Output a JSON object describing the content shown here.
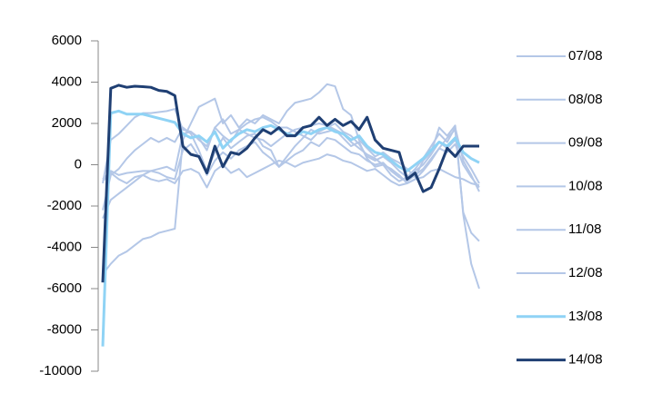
{
  "chart_data": {
    "type": "line",
    "categories": [
      null,
      null,
      null,
      null,
      null,
      null,
      null,
      null,
      null,
      null,
      null,
      null,
      null,
      null,
      null,
      null,
      null,
      null,
      null,
      null,
      null,
      null,
      null,
      null,
      null,
      null,
      null,
      null,
      null,
      null,
      null,
      null,
      null,
      null,
      null,
      null,
      null,
      null,
      null,
      null,
      null,
      null,
      null,
      null,
      null,
      null,
      null,
      null
    ],
    "ylim": [
      -10000,
      6000
    ],
    "yticks": [
      -10000,
      -8000,
      -6000,
      -4000,
      -2000,
      0,
      2000,
      4000,
      6000
    ],
    "grid": false,
    "legend": "right",
    "series": [
      {
        "name": "07/08",
        "color": "#b4c7e7",
        "values": [
          -5300,
          -4800,
          -4400,
          -4200,
          -3900,
          -3600,
          -3500,
          -3300,
          -3200,
          -3100,
          1200,
          2000,
          2800,
          3000,
          3200,
          2000,
          2400,
          1800,
          2200,
          2000,
          2400,
          2200,
          2000,
          2600,
          3000,
          3100,
          3200,
          3500,
          3900,
          3800,
          2700,
          2400,
          1200,
          800,
          400,
          600,
          300,
          100,
          -200,
          -600,
          200,
          600,
          1800,
          1400,
          1900,
          -2400,
          -4800,
          -6000
        ]
      },
      {
        "name": "08/08",
        "color": "#b4c7e7",
        "values": [
          -2600,
          -1700,
          -1400,
          -1100,
          -800,
          -500,
          -300,
          -200,
          -100,
          -300,
          1500,
          1600,
          1200,
          900,
          1800,
          1400,
          1100,
          1700,
          1500,
          1300,
          1200,
          900,
          1200,
          1500,
          1700,
          1800,
          1900,
          2000,
          1900,
          1700,
          1500,
          1100,
          800,
          500,
          300,
          0,
          -200,
          -500,
          -900,
          -700,
          -300,
          200,
          800,
          1300,
          1700,
          -2300,
          -3300,
          -3700
        ]
      },
      {
        "name": "09/08",
        "color": "#b4c7e7",
        "values": [
          -900,
          1200,
          1500,
          1900,
          2300,
          2500,
          2500,
          2550,
          2600,
          2700,
          1700,
          1600,
          1300,
          700,
          1800,
          2200,
          1500,
          1700,
          2000,
          2200,
          2300,
          2100,
          1800,
          1800,
          1600,
          1400,
          1200,
          1600,
          1800,
          2000,
          1600,
          1400,
          1000,
          400,
          200,
          400,
          100,
          -300,
          -600,
          -200,
          300,
          900,
          1500,
          1100,
          1800,
          200,
          -500,
          -1300
        ]
      },
      {
        "name": "10/08",
        "color": "#b4c7e7",
        "values": [
          -2200,
          -500,
          -200,
          300,
          700,
          1000,
          1300,
          1100,
          1300,
          1100,
          1800,
          1500,
          700,
          -300,
          600,
          1300,
          800,
          1100,
          1400,
          1500,
          900,
          700,
          -100,
          400,
          900,
          1300,
          1700,
          1500,
          1600,
          1700,
          1300,
          900,
          1100,
          300,
          -100,
          0,
          -500,
          -800,
          -600,
          -300,
          0,
          500,
          1100,
          800,
          1200,
          400,
          -200,
          -900
        ]
      },
      {
        "name": "11/08",
        "color": "#b4c7e7",
        "values": [
          -700,
          -300,
          -500,
          -400,
          -350,
          -300,
          -300,
          -400,
          -600,
          -700,
          700,
          1000,
          400,
          -500,
          200,
          600,
          300,
          700,
          900,
          1100,
          600,
          300,
          -100,
          200,
          500,
          700,
          1100,
          900,
          1300,
          1200,
          900,
          600,
          500,
          200,
          0,
          100,
          -300,
          -600,
          -800,
          -500,
          -200,
          300,
          800,
          600,
          1000,
          0,
          -600,
          -1100
        ]
      },
      {
        "name": "12/08",
        "color": "#b4c7e7",
        "values": [
          -800,
          -400,
          -700,
          -900,
          -600,
          -500,
          -700,
          -800,
          -700,
          -900,
          -300,
          -200,
          -400,
          -1100,
          -300,
          0,
          -400,
          -200,
          -600,
          -400,
          -200,
          0,
          200,
          100,
          -100,
          100,
          200,
          300,
          500,
          400,
          200,
          100,
          -100,
          -300,
          -200,
          -500,
          -800,
          -1000,
          -900,
          -700,
          -600,
          -300,
          -200,
          -400,
          -600,
          -700,
          -900,
          -1000
        ]
      },
      {
        "name": "13/08",
        "color": "#8fd3f5",
        "values": [
          -8800,
          2500,
          2600,
          2450,
          2450,
          2450,
          2350,
          2250,
          2150,
          2050,
          1500,
          1300,
          1400,
          1100,
          1600,
          800,
          1200,
          1500,
          1700,
          1600,
          1800,
          1900,
          1700,
          1500,
          1400,
          1600,
          1500,
          1700,
          1800,
          1600,
          1500,
          1200,
          1400,
          900,
          600,
          500,
          200,
          -100,
          -300,
          0,
          300,
          700,
          1100,
          900,
          1300,
          600,
          300,
          100
        ]
      },
      {
        "name": "14/08",
        "color": "#1f3f73",
        "values": [
          -5700,
          3700,
          3850,
          3750,
          3800,
          3780,
          3750,
          3600,
          3550,
          3350,
          900,
          500,
          400,
          -400,
          900,
          -100,
          600,
          500,
          800,
          1300,
          1700,
          1500,
          1800,
          1400,
          1400,
          1800,
          1900,
          2300,
          1900,
          2200,
          1900,
          2100,
          1700,
          2300,
          1200,
          800,
          700,
          600,
          -700,
          -400,
          -1300,
          -1100,
          -200,
          800,
          400,
          900,
          900,
          900
        ]
      }
    ]
  }
}
